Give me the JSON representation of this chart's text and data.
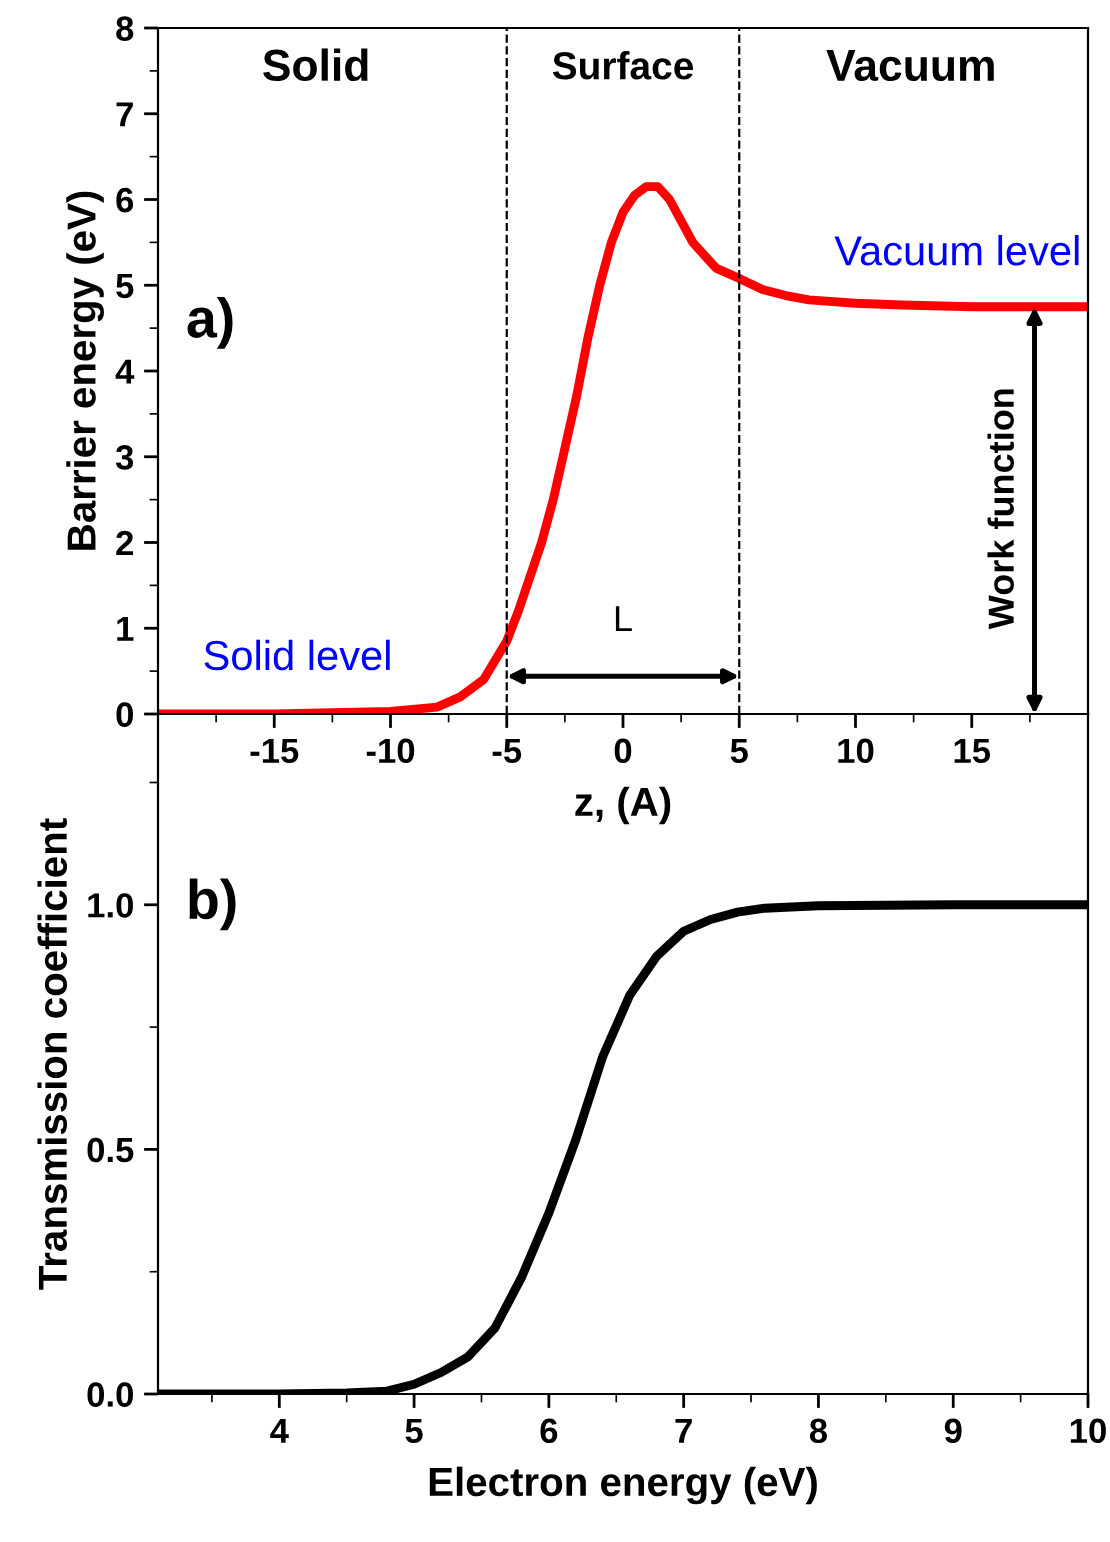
{
  "chart_data": [
    {
      "type": "line",
      "xlabel": "z, (A)",
      "ylabel": "Barrier energy (eV)",
      "x": [
        -20,
        -15,
        -10,
        -8,
        -7,
        -6,
        -5,
        -4.5,
        -4,
        -3.5,
        -3,
        -2.5,
        -2,
        -1.5,
        -1,
        -0.5,
        0,
        0.5,
        1,
        1.5,
        2,
        2.5,
        3,
        4,
        5,
        6,
        7,
        8,
        10,
        12,
        15,
        20
      ],
      "series": [
        {
          "color": "#ff0000",
          "values": [
            0,
            0,
            0.03,
            0.08,
            0.2,
            0.4,
            0.85,
            1.2,
            1.6,
            2.0,
            2.5,
            3.1,
            3.7,
            4.4,
            5.0,
            5.5,
            5.85,
            6.05,
            6.15,
            6.15,
            6.0,
            5.75,
            5.5,
            5.2,
            5.08,
            4.95,
            4.88,
            4.83,
            4.79,
            4.77,
            4.75,
            4.75
          ]
        }
      ],
      "xlim": [
        -20,
        20
      ],
      "xticks": [
        -15,
        -10,
        -5,
        0,
        5,
        10,
        15
      ],
      "ylim": [
        0,
        8
      ],
      "yticks": [
        0,
        1,
        2,
        3,
        4,
        5,
        6,
        7,
        8
      ],
      "ref_lines": [
        {
          "axis": "x",
          "value": -5,
          "color": "#000000",
          "line_style": "dashed"
        },
        {
          "axis": "x",
          "value": 5,
          "color": "#000000",
          "line_style": "dashed"
        }
      ],
      "annotations": [
        "a)",
        "Solid",
        "Surface",
        "Vacuum",
        "Vacuum level",
        "Solid level",
        "L",
        "Work function"
      ],
      "grid": false,
      "marker": "none",
      "line_style": "solid"
    },
    {
      "type": "line",
      "xlabel": "Electron energy (eV)",
      "ylabel": "Transmission coefficient",
      "x": [
        3.1,
        4,
        4.5,
        4.8,
        5.0,
        5.2,
        5.4,
        5.6,
        5.8,
        6.0,
        6.2,
        6.4,
        6.6,
        6.8,
        7.0,
        7.2,
        7.4,
        7.6,
        8,
        9,
        10
      ],
      "series": [
        {
          "color": "#000000",
          "values": [
            0,
            0,
            0.002,
            0.006,
            0.02,
            0.044,
            0.076,
            0.135,
            0.24,
            0.37,
            0.52,
            0.69,
            0.815,
            0.895,
            0.946,
            0.97,
            0.985,
            0.993,
            0.998,
            1.0,
            1.0
          ]
        }
      ],
      "xlim": [
        3.1,
        10
      ],
      "xticks": [
        4,
        5,
        6,
        7,
        8,
        9,
        10
      ],
      "ylim": [
        0,
        1.39
      ],
      "yticks": [
        {
          "value": 0,
          "label": "0.0"
        },
        0.5,
        {
          "value": 1,
          "label": "1.0"
        }
      ],
      "annotations": [
        "b)"
      ],
      "grid": false,
      "marker": "none",
      "line_style": "solid"
    }
  ]
}
